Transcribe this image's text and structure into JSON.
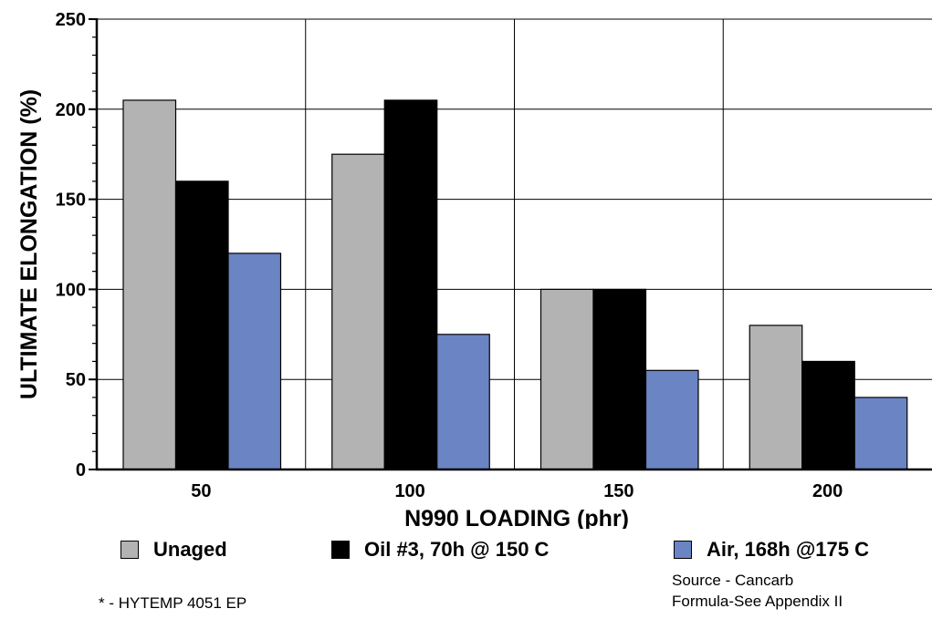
{
  "chart_data": {
    "type": "bar",
    "xlabel": "N990 LOADING (phr)",
    "ylabel": "ULTIMATE ELONGATION (%)",
    "categories": [
      "50",
      "100",
      "150",
      "200"
    ],
    "ylim": [
      0,
      250
    ],
    "y_ticks": [
      "0",
      "50",
      "100",
      "150",
      "200",
      "250"
    ],
    "grid": true,
    "legend_position": "bottom",
    "series": [
      {
        "name": "Unaged",
        "color": "#b3b3b3",
        "values": [
          205,
          175,
          100,
          80
        ]
      },
      {
        "name": "Oil #3, 70h @ 150 C",
        "color": "#000000",
        "values": [
          160,
          205,
          100,
          60
        ]
      },
      {
        "name": "Air, 168h @175 C",
        "color": "#6b84c4",
        "values": [
          120,
          75,
          55,
          40
        ]
      }
    ]
  },
  "notes": {
    "footnote": "* - HYTEMP 4051 EP",
    "source": "Source - Cancarb",
    "formula": "Formula-See Appendix II"
  }
}
